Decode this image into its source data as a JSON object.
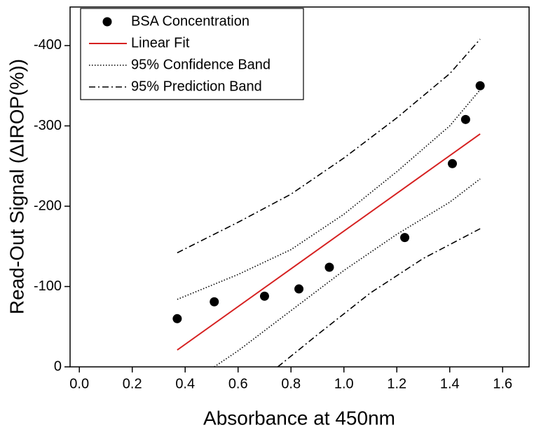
{
  "chart_data": {
    "type": "scatter",
    "x_label": "Absorbance at 450nm",
    "y_label": "Read-Out Signal (ΔIROP(%))",
    "xlim": [
      -0.035,
      1.7
    ],
    "ylim": [
      0,
      -448
    ],
    "xticks": [
      {
        "value": 0,
        "label": "0.0"
      },
      0.2,
      0.4,
      0.6,
      0.8,
      {
        "value": 1,
        "label": "1.0"
      },
      1.2,
      1.4,
      1.6
    ],
    "yticks": [
      0,
      -100,
      -200,
      -300,
      -400
    ],
    "legend": "upper left",
    "series": [
      {
        "name": "BSA Concentration",
        "type": "scatter",
        "color": "#000000",
        "x": [
          0.37,
          0.51,
          0.7,
          0.83,
          0.945,
          1.23,
          1.41,
          1.46,
          1.515
        ],
        "values": [
          -60,
          -81,
          -88,
          -97,
          -124,
          -161,
          -253,
          -308,
          -350
        ]
      },
      {
        "name": "Linear Fit",
        "type": "line",
        "linestyle": "solid",
        "color": "#d62020",
        "x": [
          0.37,
          1.515
        ],
        "values": [
          -21,
          -290
        ]
      },
      {
        "name": "95% Confidence Band",
        "type": "line",
        "linestyle": "dotted",
        "color": "#000000",
        "x": [
          0.37,
          0.6,
          0.8,
          1.0,
          1.2,
          1.4,
          1.515,
          null,
          0.51,
          0.6,
          0.8,
          1.0,
          1.2,
          1.4,
          1.515
        ],
        "values": [
          -84,
          -115,
          -146,
          -190,
          -243,
          -300,
          -345,
          null,
          0,
          -20,
          -70,
          -120,
          -165,
          -205,
          -234
        ]
      },
      {
        "name": "95% Prediction Band",
        "type": "line",
        "linestyle": "dashdot",
        "color": "#000000",
        "x": [
          0.37,
          0.6,
          0.8,
          1.0,
          1.2,
          1.4,
          1.515,
          null,
          0.75,
          0.9,
          1.1,
          1.3,
          1.515
        ],
        "values": [
          -142,
          -180,
          -215,
          -260,
          -310,
          -365,
          -408,
          null,
          0,
          -40,
          -92,
          -135,
          -172
        ]
      }
    ]
  }
}
